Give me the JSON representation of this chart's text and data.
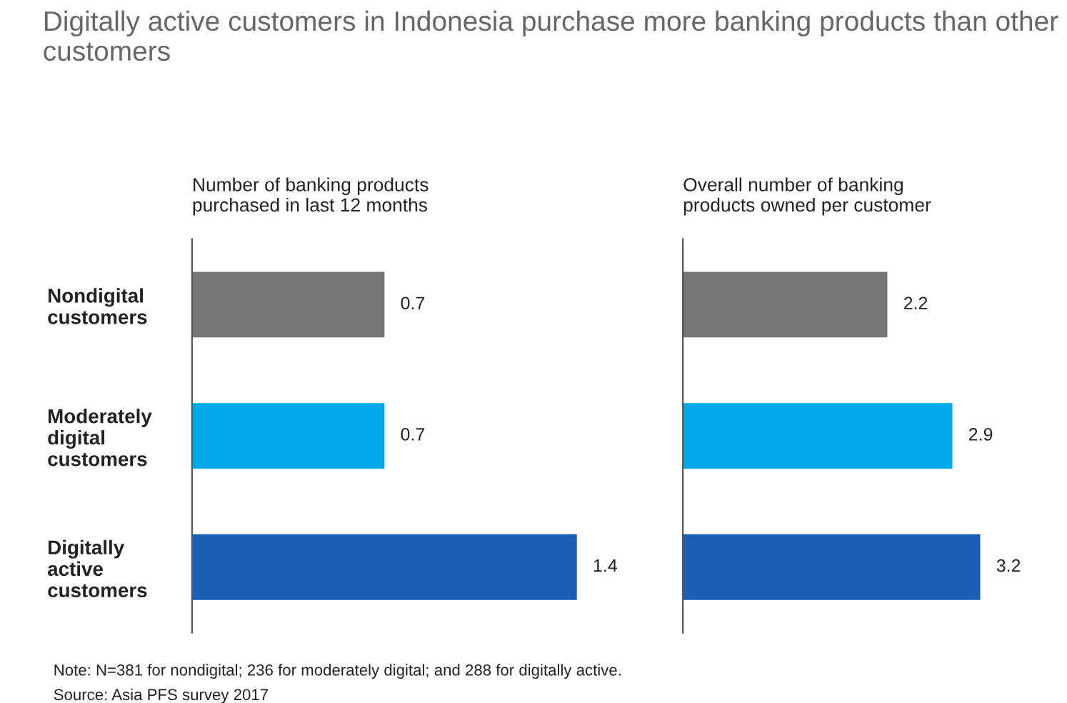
{
  "chart_data": [
    {
      "type": "bar",
      "orientation": "horizontal",
      "title": "Digitally active customers in Indonesia purchase more banking products than other customers",
      "subtitle": "Number of banking products\npurchased in last 12 months",
      "categories": [
        "Nondigital\ncustomers",
        "Moderately\ndigital\ncustomers",
        "Digitally\nactive\ncustomers"
      ],
      "values": [
        0.7,
        0.7,
        1.4
      ],
      "colors": [
        "#757575",
        "#00a9e8",
        "#1b5fb5"
      ],
      "data_labels": true,
      "tick_labels": "y",
      "grid": false,
      "legend": false,
      "annotations": [
        "Note: N=381 for nondigital; 236 for moderately digital; and 288 for digitally active.",
        "Source: Asia PFS survey 2017"
      ]
    },
    {
      "type": "bar",
      "orientation": "horizontal",
      "subtitle": "Overall number of banking\nproducts owned per customer",
      "values": [
        2.2,
        2.9,
        3.2
      ],
      "colors": [
        "#757575",
        "#00a9e8",
        "#1b5fb5"
      ],
      "data_labels": true,
      "tick_labels": false,
      "grid": false,
      "legend": false
    }
  ]
}
